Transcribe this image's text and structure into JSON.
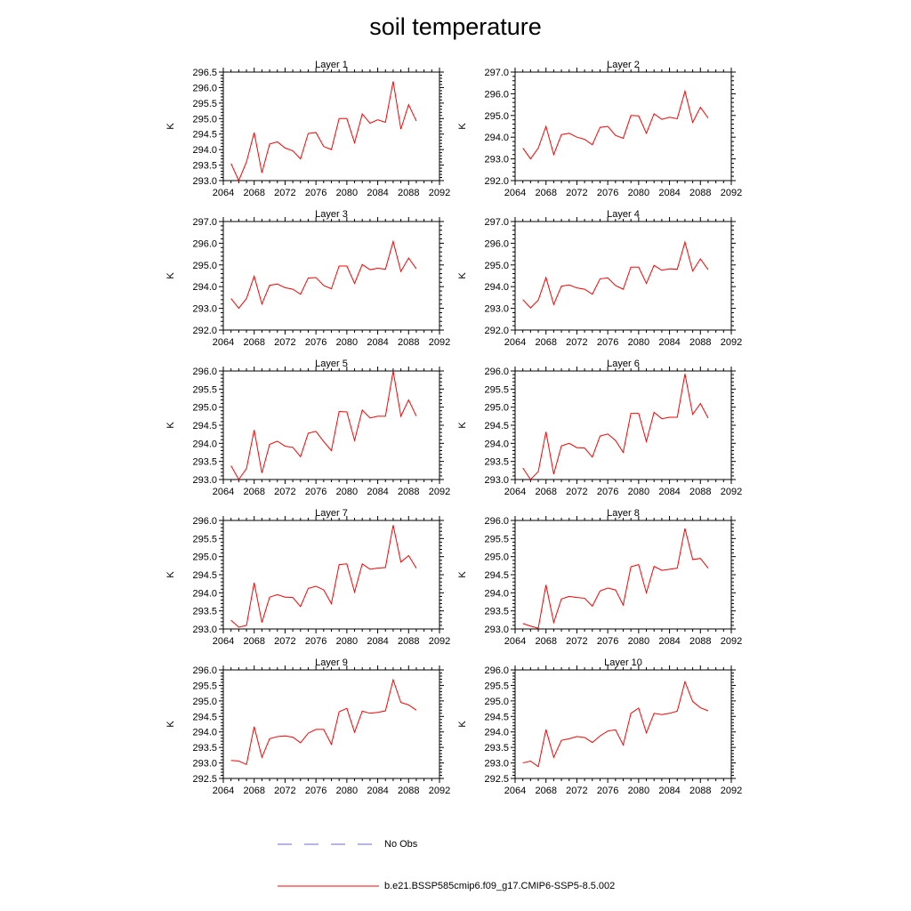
{
  "title": "soil temperature",
  "chart_data": [
    {
      "type": "line",
      "title": "Layer 1",
      "ylabel": "K",
      "xlim": [
        2064,
        2092
      ],
      "ylim": [
        293.0,
        296.5
      ],
      "xticks": [
        "2064",
        "2068",
        "2072",
        "2076",
        "2080",
        "2084",
        "2088",
        "2092"
      ],
      "yticks": [
        "293.0",
        "293.5",
        "294.0",
        "294.5",
        "295.0",
        "295.5",
        "296.0",
        "296.5"
      ],
      "series": [
        {
          "name": "b.e21.BSSP585cmip6.f09_g17.CMIP6-SSP5-8.5.002",
          "x": [
            2065,
            2066,
            2067,
            2068,
            2069,
            2070,
            2071,
            2072,
            2073,
            2074,
            2075,
            2076,
            2077,
            2078,
            2079,
            2080,
            2081,
            2082,
            2083,
            2084,
            2085,
            2086,
            2087,
            2088,
            2089
          ],
          "values": [
            293.55,
            293.0,
            293.6,
            294.55,
            293.25,
            294.18,
            294.25,
            294.05,
            293.96,
            293.7,
            294.52,
            294.55,
            294.1,
            294.0,
            295.0,
            295.0,
            294.22,
            295.15,
            294.85,
            294.96,
            294.88,
            296.2,
            294.66,
            295.45,
            294.92
          ]
        }
      ]
    },
    {
      "type": "line",
      "title": "Layer 2",
      "ylabel": "K",
      "xlim": [
        2064,
        2092
      ],
      "ylim": [
        292.0,
        297.0
      ],
      "xticks": [
        "2064",
        "2068",
        "2072",
        "2076",
        "2080",
        "2084",
        "2088",
        "2092"
      ],
      "yticks": [
        "292.0",
        "293.0",
        "294.0",
        "295.0",
        "296.0",
        "297.0"
      ],
      "series": [
        {
          "name": "b.e21.BSSP585cmip6.f09_g17.CMIP6-SSP5-8.5.002",
          "x": [
            2065,
            2066,
            2067,
            2068,
            2069,
            2070,
            2071,
            2072,
            2073,
            2074,
            2075,
            2076,
            2077,
            2078,
            2079,
            2080,
            2081,
            2082,
            2083,
            2084,
            2085,
            2086,
            2087,
            2088,
            2089
          ],
          "values": [
            293.5,
            293.0,
            293.5,
            294.5,
            293.2,
            294.12,
            294.18,
            294.0,
            293.9,
            293.65,
            294.45,
            294.5,
            294.08,
            293.95,
            295.0,
            294.98,
            294.18,
            295.08,
            294.82,
            294.92,
            294.85,
            296.12,
            294.68,
            295.38,
            294.88
          ]
        }
      ]
    },
    {
      "type": "line",
      "title": "Layer 3",
      "ylabel": "K",
      "xlim": [
        2064,
        2092
      ],
      "ylim": [
        292.0,
        297.0
      ],
      "xticks": [
        "2064",
        "2068",
        "2072",
        "2076",
        "2080",
        "2084",
        "2088",
        "2092"
      ],
      "yticks": [
        "292.0",
        "293.0",
        "294.0",
        "295.0",
        "296.0",
        "297.0"
      ],
      "series": [
        {
          "name": "b.e21.BSSP585cmip6.f09_g17.CMIP6-SSP5-8.5.002",
          "x": [
            2065,
            2066,
            2067,
            2068,
            2069,
            2070,
            2071,
            2072,
            2073,
            2074,
            2075,
            2076,
            2077,
            2078,
            2079,
            2080,
            2081,
            2082,
            2083,
            2084,
            2085,
            2086,
            2087,
            2088,
            2089
          ],
          "values": [
            293.45,
            293.0,
            293.45,
            294.48,
            293.2,
            294.06,
            294.12,
            293.95,
            293.88,
            293.65,
            294.4,
            294.42,
            294.05,
            293.9,
            294.95,
            294.95,
            294.15,
            295.02,
            294.78,
            294.85,
            294.8,
            296.08,
            294.7,
            295.32,
            294.82
          ]
        }
      ]
    },
    {
      "type": "line",
      "title": "Layer 4",
      "ylabel": "K",
      "xlim": [
        2064,
        2092
      ],
      "ylim": [
        292.0,
        297.0
      ],
      "xticks": [
        "2064",
        "2068",
        "2072",
        "2076",
        "2080",
        "2084",
        "2088",
        "2092"
      ],
      "yticks": [
        "292.0",
        "293.0",
        "294.0",
        "295.0",
        "296.0",
        "297.0"
      ],
      "series": [
        {
          "name": "b.e21.BSSP585cmip6.f09_g17.CMIP6-SSP5-8.5.002",
          "x": [
            2065,
            2066,
            2067,
            2068,
            2069,
            2070,
            2071,
            2072,
            2073,
            2074,
            2075,
            2076,
            2077,
            2078,
            2079,
            2080,
            2081,
            2082,
            2083,
            2084,
            2085,
            2086,
            2087,
            2088,
            2089
          ],
          "values": [
            293.4,
            293.02,
            293.38,
            294.42,
            293.18,
            294.02,
            294.08,
            293.94,
            293.88,
            293.65,
            294.36,
            294.4,
            294.05,
            293.88,
            294.9,
            294.9,
            294.15,
            294.98,
            294.75,
            294.82,
            294.8,
            296.05,
            294.72,
            295.28,
            294.78
          ]
        }
      ]
    },
    {
      "type": "line",
      "title": "Layer 5",
      "ylabel": "K",
      "xlim": [
        2064,
        2092
      ],
      "ylim": [
        293.0,
        296.0
      ],
      "xticks": [
        "2064",
        "2068",
        "2072",
        "2076",
        "2080",
        "2084",
        "2088",
        "2092"
      ],
      "yticks": [
        "293.0",
        "293.5",
        "294.0",
        "294.5",
        "295.0",
        "295.5",
        "296.0"
      ],
      "series": [
        {
          "name": "b.e21.BSSP585cmip6.f09_g17.CMIP6-SSP5-8.5.002",
          "x": [
            2065,
            2066,
            2067,
            2068,
            2069,
            2070,
            2071,
            2072,
            2073,
            2074,
            2075,
            2076,
            2077,
            2078,
            2079,
            2080,
            2081,
            2082,
            2083,
            2084,
            2085,
            2086,
            2087,
            2088,
            2089
          ],
          "values": [
            293.38,
            293.0,
            293.3,
            294.37,
            293.18,
            293.97,
            294.06,
            293.92,
            293.89,
            293.63,
            294.28,
            294.33,
            294.05,
            293.8,
            294.88,
            294.87,
            294.08,
            294.92,
            294.7,
            294.75,
            294.75,
            296.0,
            294.75,
            295.2,
            294.75
          ]
        }
      ]
    },
    {
      "type": "line",
      "title": "Layer 6",
      "ylabel": "K",
      "xlim": [
        2064,
        2092
      ],
      "ylim": [
        293.0,
        296.0
      ],
      "xticks": [
        "2064",
        "2068",
        "2072",
        "2076",
        "2080",
        "2084",
        "2088",
        "2092"
      ],
      "yticks": [
        "293.0",
        "293.5",
        "294.0",
        "294.5",
        "295.0",
        "295.5",
        "296.0"
      ],
      "series": [
        {
          "name": "b.e21.BSSP585cmip6.f09_g17.CMIP6-SSP5-8.5.002",
          "x": [
            2065,
            2066,
            2067,
            2068,
            2069,
            2070,
            2071,
            2072,
            2073,
            2074,
            2075,
            2076,
            2077,
            2078,
            2079,
            2080,
            2081,
            2082,
            2083,
            2084,
            2085,
            2086,
            2087,
            2088,
            2089
          ],
          "values": [
            293.32,
            293.0,
            293.22,
            294.32,
            293.15,
            293.93,
            294.0,
            293.88,
            293.87,
            293.62,
            294.2,
            294.26,
            294.08,
            293.75,
            294.83,
            294.83,
            294.05,
            294.86,
            294.68,
            294.72,
            294.72,
            295.92,
            294.8,
            295.1,
            294.7
          ]
        }
      ]
    },
    {
      "type": "line",
      "title": "Layer 7",
      "ylabel": "K",
      "xlim": [
        2064,
        2092
      ],
      "ylim": [
        293.0,
        296.0
      ],
      "xticks": [
        "2064",
        "2068",
        "2072",
        "2076",
        "2080",
        "2084",
        "2088",
        "2092"
      ],
      "yticks": [
        "293.0",
        "293.5",
        "294.0",
        "294.5",
        "295.0",
        "295.5",
        "296.0"
      ],
      "series": [
        {
          "name": "b.e21.BSSP585cmip6.f09_g17.CMIP6-SSP5-8.5.002",
          "x": [
            2065,
            2066,
            2067,
            2068,
            2069,
            2070,
            2071,
            2072,
            2073,
            2074,
            2075,
            2076,
            2077,
            2078,
            2079,
            2080,
            2081,
            2082,
            2083,
            2084,
            2085,
            2086,
            2087,
            2088,
            2089
          ],
          "values": [
            293.24,
            293.05,
            293.1,
            294.28,
            293.18,
            293.88,
            293.95,
            293.88,
            293.87,
            293.62,
            294.12,
            294.18,
            294.08,
            293.7,
            294.78,
            294.8,
            294.02,
            294.8,
            294.65,
            294.68,
            294.7,
            295.87,
            294.85,
            295.03,
            294.68
          ]
        }
      ]
    },
    {
      "type": "line",
      "title": "Layer 8",
      "ylabel": "K",
      "xlim": [
        2064,
        2092
      ],
      "ylim": [
        293.0,
        296.0
      ],
      "xticks": [
        "2064",
        "2068",
        "2072",
        "2076",
        "2080",
        "2084",
        "2088",
        "2092"
      ],
      "yticks": [
        "293.0",
        "293.5",
        "294.0",
        "294.5",
        "295.0",
        "295.5",
        "296.0"
      ],
      "series": [
        {
          "name": "b.e21.BSSP585cmip6.f09_g17.CMIP6-SSP5-8.5.002",
          "x": [
            2065,
            2066,
            2067,
            2068,
            2069,
            2070,
            2071,
            2072,
            2073,
            2074,
            2075,
            2076,
            2077,
            2078,
            2079,
            2080,
            2081,
            2082,
            2083,
            2084,
            2085,
            2086,
            2087,
            2088,
            2089
          ],
          "values": [
            293.15,
            293.08,
            293.02,
            294.22,
            293.18,
            293.83,
            293.9,
            293.87,
            293.85,
            293.63,
            294.05,
            294.13,
            294.08,
            293.66,
            294.72,
            294.78,
            294.0,
            294.73,
            294.62,
            294.65,
            294.68,
            295.78,
            294.92,
            294.95,
            294.68
          ]
        }
      ]
    },
    {
      "type": "line",
      "title": "Layer 9",
      "ylabel": "K",
      "xlim": [
        2064,
        2092
      ],
      "ylim": [
        292.5,
        296.0
      ],
      "xticks": [
        "2064",
        "2068",
        "2072",
        "2076",
        "2080",
        "2084",
        "2088",
        "2092"
      ],
      "yticks": [
        "292.5",
        "293.0",
        "293.5",
        "294.0",
        "294.5",
        "295.0",
        "295.5",
        "296.0"
      ],
      "series": [
        {
          "name": "b.e21.BSSP585cmip6.f09_g17.CMIP6-SSP5-8.5.002",
          "x": [
            2065,
            2066,
            2067,
            2068,
            2069,
            2070,
            2071,
            2072,
            2073,
            2074,
            2075,
            2076,
            2077,
            2078,
            2079,
            2080,
            2081,
            2082,
            2083,
            2084,
            2085,
            2086,
            2087,
            2088,
            2089
          ],
          "values": [
            293.08,
            293.06,
            292.95,
            294.17,
            293.18,
            293.78,
            293.85,
            293.87,
            293.83,
            293.65,
            293.96,
            294.08,
            294.08,
            293.6,
            294.65,
            294.76,
            293.99,
            294.67,
            294.6,
            294.63,
            294.68,
            295.68,
            294.95,
            294.87,
            294.7
          ]
        }
      ]
    },
    {
      "type": "line",
      "title": "Layer 10",
      "ylabel": "K",
      "xlim": [
        2064,
        2092
      ],
      "ylim": [
        292.5,
        296.0
      ],
      "xticks": [
        "2064",
        "2068",
        "2072",
        "2076",
        "2080",
        "2084",
        "2088",
        "2092"
      ],
      "yticks": [
        "292.5",
        "293.0",
        "293.5",
        "294.0",
        "294.5",
        "295.0",
        "295.5",
        "296.0"
      ],
      "series": [
        {
          "name": "b.e21.BSSP585cmip6.f09_g17.CMIP6-SSP5-8.5.002",
          "x": [
            2065,
            2066,
            2067,
            2068,
            2069,
            2070,
            2071,
            2072,
            2073,
            2074,
            2075,
            2076,
            2077,
            2078,
            2079,
            2080,
            2081,
            2082,
            2083,
            2084,
            2085,
            2086,
            2087,
            2088,
            2089
          ],
          "values": [
            293.0,
            293.06,
            292.88,
            294.08,
            293.18,
            293.73,
            293.78,
            293.85,
            293.82,
            293.66,
            293.87,
            294.03,
            294.07,
            293.58,
            294.6,
            294.77,
            293.97,
            294.6,
            294.56,
            294.6,
            294.67,
            295.62,
            294.98,
            294.78,
            294.68
          ]
        }
      ]
    }
  ],
  "legend": {
    "entries": [
      {
        "label": "No Obs",
        "color": "#6a6ad0",
        "dash": "dashed"
      },
      {
        "label": "b.e21.BSSP585cmip6.f09_g17.CMIP6-SSP5-8.5.002",
        "color": "#ff0000",
        "dash": "solid"
      }
    ]
  },
  "colors": {
    "series": "#ff0000",
    "axis": "#000000"
  }
}
